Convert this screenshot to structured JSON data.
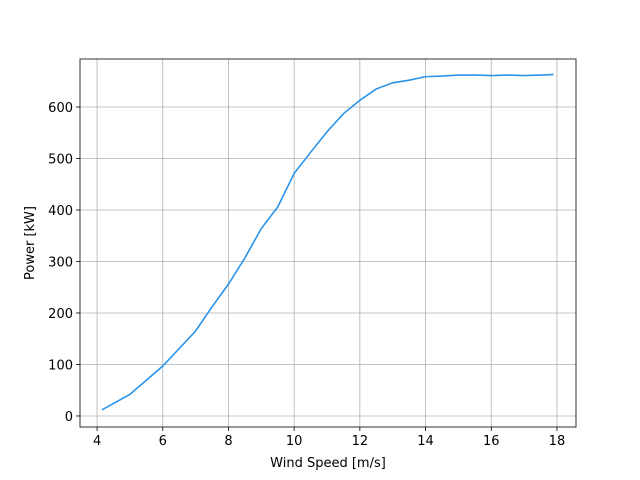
{
  "chart_data": {
    "type": "line",
    "xlabel": "Wind Speed [m/s]",
    "ylabel": "Power [kW]",
    "x": [
      4.15,
      5,
      6,
      7,
      7.5,
      8,
      8.5,
      9,
      9.5,
      10,
      10.5,
      11,
      11.5,
      12,
      12.5,
      13,
      13.5,
      14,
      14.5,
      15,
      15.5,
      16,
      16.5,
      17,
      17.5,
      17.9
    ],
    "series": [
      {
        "name": "Power",
        "color": "#2a93ea",
        "values": [
          12,
          42,
          97,
          165,
          212,
          256,
          307,
          364,
          406,
          471,
          512,
          552,
          587,
          613,
          635,
          647,
          652,
          659,
          660,
          662,
          662,
          661,
          662,
          661,
          662,
          663
        ]
      }
    ],
    "xlim": [
      3.48,
      18.58
    ],
    "ylim": [
      -21.4,
      693.2
    ],
    "xticks": [
      4,
      6,
      8,
      10,
      12,
      14,
      16,
      18
    ],
    "yticks": [
      0,
      100,
      200,
      300,
      400,
      500,
      600
    ],
    "grid": true
  }
}
